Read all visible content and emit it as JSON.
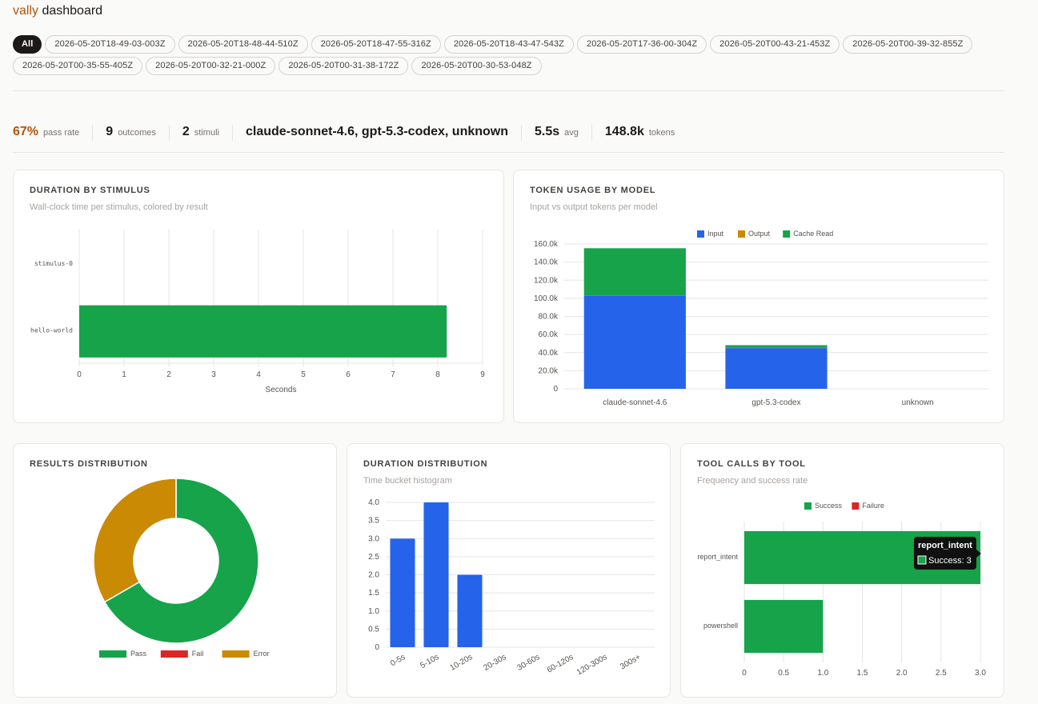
{
  "header": {
    "brand_accent": "vally",
    "brand_rest": " dashboard"
  },
  "filters": {
    "chips": [
      {
        "label": "All",
        "active": true
      },
      {
        "label": "2026-05-20T18-49-03-003Z"
      },
      {
        "label": "2026-05-20T18-48-44-510Z"
      },
      {
        "label": "2026-05-20T18-47-55-316Z"
      },
      {
        "label": "2026-05-20T18-43-47-543Z"
      },
      {
        "label": "2026-05-20T17-36-00-304Z"
      },
      {
        "label": "2026-05-20T00-43-21-453Z"
      },
      {
        "label": "2026-05-20T00-39-32-855Z"
      },
      {
        "label": "2026-05-20T00-35-55-405Z"
      },
      {
        "label": "2026-05-20T00-32-21-000Z"
      },
      {
        "label": "2026-05-20T00-31-38-172Z"
      },
      {
        "label": "2026-05-20T00-30-53-048Z"
      }
    ]
  },
  "stats": [
    {
      "value": "67%",
      "label": "pass rate",
      "accent": true
    },
    {
      "value": "9",
      "label": "outcomes"
    },
    {
      "value": "2",
      "label": "stimuli"
    },
    {
      "value": "claude-sonnet-4.6, gpt-5.3-codex, unknown",
      "label": ""
    },
    {
      "value": "5.5s",
      "label": "avg"
    },
    {
      "value": "148.8k",
      "label": "tokens"
    }
  ],
  "colors": {
    "pass": "#16a34a",
    "fail": "#dc2626",
    "error": "#ca8a04",
    "input": "#2563eb",
    "output": "#ca8a04",
    "cache_read": "#16a34a",
    "accent": "#b45309"
  },
  "cards": {
    "duration_by_stimulus": {
      "title": "DURATION BY STIMULUS",
      "subtitle": "Wall-clock time per stimulus, colored by result"
    },
    "token_usage": {
      "title": "TOKEN USAGE BY MODEL",
      "subtitle": "Input vs output tokens per model"
    },
    "results": {
      "title": "RESULTS DISTRIBUTION"
    },
    "duration_distribution": {
      "title": "DURATION DISTRIBUTION",
      "subtitle": "Time bucket histogram"
    },
    "tool_calls": {
      "title": "TOOL CALLS BY TOOL",
      "subtitle": "Frequency and success rate"
    }
  },
  "chart_data": [
    {
      "id": "duration_by_stimulus",
      "type": "bar",
      "orientation": "horizontal",
      "categories": [
        "stimulus-0",
        "hello-world"
      ],
      "values": [
        0,
        8.2
      ],
      "bar_colors": [
        "#16a34a",
        "#16a34a"
      ],
      "xlabel": "Seconds",
      "xlim": [
        0,
        9
      ],
      "xticks": [
        "0",
        "1",
        "2",
        "3",
        "4",
        "5",
        "6",
        "7",
        "8",
        "9"
      ],
      "grid": true
    },
    {
      "id": "token_usage",
      "type": "bar",
      "stacked": true,
      "categories": [
        "claude-sonnet-4.6",
        "gpt-5.3-codex",
        "unknown"
      ],
      "series": [
        {
          "name": "Input",
          "values": [
            103000,
            45000,
            0
          ]
        },
        {
          "name": "Output",
          "values": [
            300,
            200,
            0
          ]
        },
        {
          "name": "Cache Read",
          "values": [
            52000,
            3000,
            0
          ]
        }
      ],
      "ylim": [
        0,
        160000
      ],
      "yticks": [
        "0",
        "20.0k",
        "40.0k",
        "60.0k",
        "80.0k",
        "100.0k",
        "120.0k",
        "140.0k",
        "160.0k"
      ],
      "legend": "top",
      "grid": true
    },
    {
      "id": "results_distribution",
      "type": "pie",
      "donut": true,
      "labels": [
        "Pass",
        "Fail",
        "Error"
      ],
      "values": [
        6,
        0,
        3
      ],
      "legend": "bottom"
    },
    {
      "id": "duration_distribution",
      "type": "bar",
      "categories": [
        "0-5s",
        "5-10s",
        "10-20s",
        "20-30s",
        "30-60s",
        "60-120s",
        "120-300s",
        "300s+"
      ],
      "values": [
        3,
        4,
        2,
        0,
        0,
        0,
        0,
        0
      ],
      "ylim": [
        0,
        4
      ],
      "yticks": [
        "0",
        "0.5",
        "1.0",
        "1.5",
        "2.0",
        "2.5",
        "3.0",
        "3.5",
        "4.0"
      ],
      "grid": true
    },
    {
      "id": "tool_calls",
      "type": "bar",
      "orientation": "horizontal",
      "stacked": true,
      "categories": [
        "report_intent",
        "powershell"
      ],
      "series": [
        {
          "name": "Success",
          "values": [
            3,
            1
          ]
        },
        {
          "name": "Failure",
          "values": [
            0,
            0
          ]
        }
      ],
      "xlim": [
        0,
        3
      ],
      "xticks": [
        "0",
        "0.5",
        "1.0",
        "1.5",
        "2.0",
        "2.5",
        "3.0"
      ],
      "legend": "top",
      "tooltip": {
        "title": "report_intent",
        "text": "Success: 3"
      },
      "grid": true
    }
  ]
}
